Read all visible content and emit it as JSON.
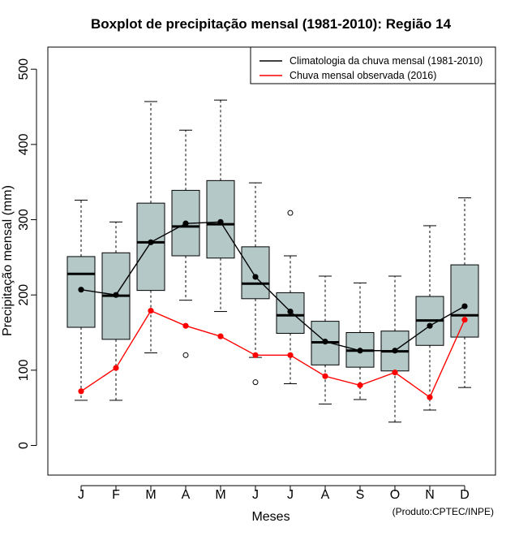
{
  "chart_data": {
    "type": "boxplot",
    "title": "Boxplot de precipitação mensal (1981-2010): Região 14",
    "xlabel": "Meses",
    "ylabel": "Precipitação mensal (mm)",
    "ylim": [
      -40,
      540
    ],
    "yticks": [
      0,
      100,
      200,
      300,
      400,
      500
    ],
    "categories": [
      "J",
      "F",
      "M",
      "A",
      "M",
      "J",
      "J",
      "A",
      "S",
      "O",
      "N",
      "D"
    ],
    "boxes": [
      {
        "min": 60,
        "q1": 157,
        "median": 228,
        "q3": 251,
        "max": 326,
        "outliers": []
      },
      {
        "min": 60,
        "q1": 141,
        "median": 199,
        "q3": 256,
        "max": 297,
        "outliers": []
      },
      {
        "min": 123,
        "q1": 206,
        "median": 270,
        "q3": 322,
        "max": 457,
        "outliers": []
      },
      {
        "min": 193,
        "q1": 252,
        "median": 291,
        "q3": 339,
        "max": 419,
        "outliers": [
          120
        ]
      },
      {
        "min": 178,
        "q1": 249,
        "median": 294,
        "q3": 352,
        "max": 459,
        "outliers": []
      },
      {
        "min": 117,
        "q1": 195,
        "median": 215,
        "q3": 264,
        "max": 349,
        "outliers": [
          84
        ]
      },
      {
        "min": 82,
        "q1": 149,
        "median": 173,
        "q3": 203,
        "max": 252,
        "outliers": [
          309
        ]
      },
      {
        "min": 55,
        "q1": 107,
        "median": 137,
        "q3": 165,
        "max": 225,
        "outliers": []
      },
      {
        "min": 61,
        "q1": 104,
        "median": 126,
        "q3": 150,
        "max": 216,
        "outliers": []
      },
      {
        "min": 31,
        "q1": 99,
        "median": 125,
        "q3": 152,
        "max": 225,
        "outliers": []
      },
      {
        "min": 47,
        "q1": 133,
        "median": 166,
        "q3": 198,
        "max": 292,
        "outliers": []
      },
      {
        "min": 77,
        "q1": 144,
        "median": 173,
        "q3": 240,
        "max": 329,
        "outliers": []
      }
    ],
    "series": [
      {
        "name": "Climatologia da chuva mensal (1981-2010)",
        "color": "#000000",
        "values": [
          207,
          200,
          270,
          295,
          297,
          224,
          178,
          138,
          126,
          126,
          159,
          185
        ]
      },
      {
        "name": "Chuva mensal observada (2016)",
        "color": "#ff0000",
        "values": [
          72,
          103,
          179,
          159,
          145,
          120,
          120,
          92,
          80,
          97,
          64,
          167
        ]
      }
    ],
    "box_fill": "#b4c8c8",
    "legend_position": "top-right",
    "credit": "(Produto:CPTEC/INPE)"
  }
}
